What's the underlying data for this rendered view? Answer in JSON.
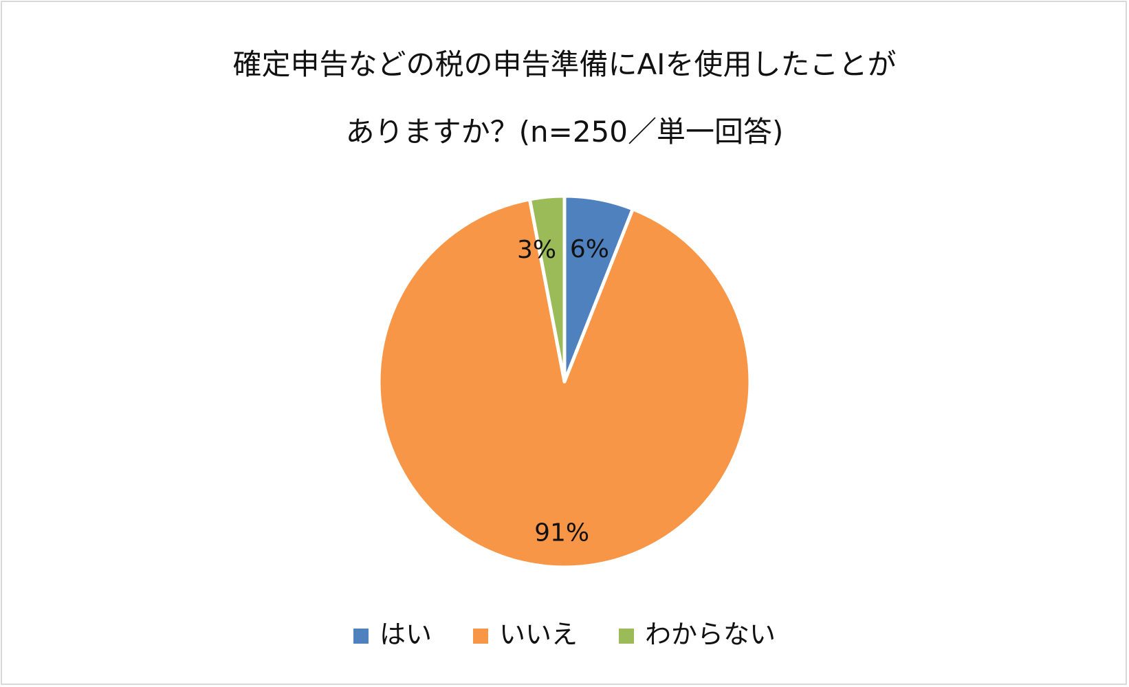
{
  "chart_data": {
    "type": "pie",
    "title_lines": [
      "確定申告などの税の申告準備にAIを使用したことが",
      "ありますか？(n=250／単一回答)"
    ],
    "slices": [
      {
        "label": "はい",
        "value": 6,
        "value_label": "6%",
        "color": "#4e81bd"
      },
      {
        "label": "いいえ",
        "value": 91,
        "value_label": "91%",
        "color": "#f79646"
      },
      {
        "label": "わからない",
        "value": 3,
        "value_label": "3%",
        "color": "#9bbb59"
      }
    ],
    "start_angle_deg": 0,
    "direction": "clockwise",
    "legend_position": "bottom"
  }
}
